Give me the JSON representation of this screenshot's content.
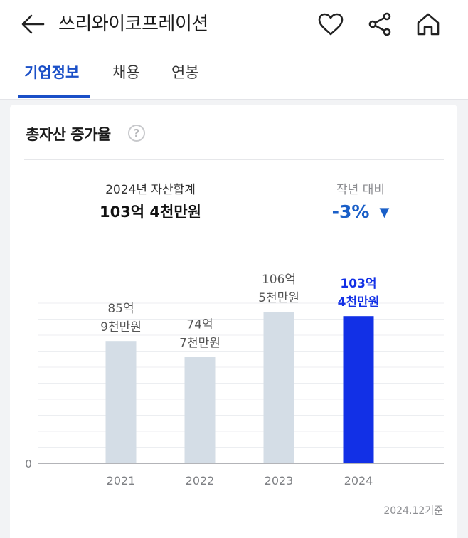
{
  "header": {
    "title": "쓰리와이코프레이션"
  },
  "tabs": [
    {
      "label": "기업정보",
      "active": true
    },
    {
      "label": "채용",
      "active": false
    },
    {
      "label": "연봉",
      "active": false
    }
  ],
  "card": {
    "title": "총자산 증가율",
    "help_glyph": "?",
    "summary": {
      "total_label": "2024년 자산합계",
      "total_value": "103억 4천만원",
      "change_label": "작년 대비",
      "change_value": "-3%",
      "change_arrow": "▼"
    },
    "footnote": "2024.12기준"
  },
  "colors": {
    "accent": "#1a4fc7",
    "bar_default": "#d4dde6",
    "bar_highlight": "#1230e6",
    "change": "#1a5fc8"
  },
  "chart_data": {
    "type": "bar",
    "categories": [
      "2021",
      "2022",
      "2023",
      "2024"
    ],
    "values": [
      85.9,
      74.7,
      106.5,
      103.4
    ],
    "value_labels": [
      [
        "85억",
        "9천만원"
      ],
      [
        "74억",
        "7천만원"
      ],
      [
        "106억",
        "5천만원"
      ],
      [
        "103억",
        "4천만원"
      ]
    ],
    "highlight_index": 3,
    "y_tick_labels": [
      "0"
    ],
    "ylim": [
      0,
      120
    ],
    "grid": true
  }
}
